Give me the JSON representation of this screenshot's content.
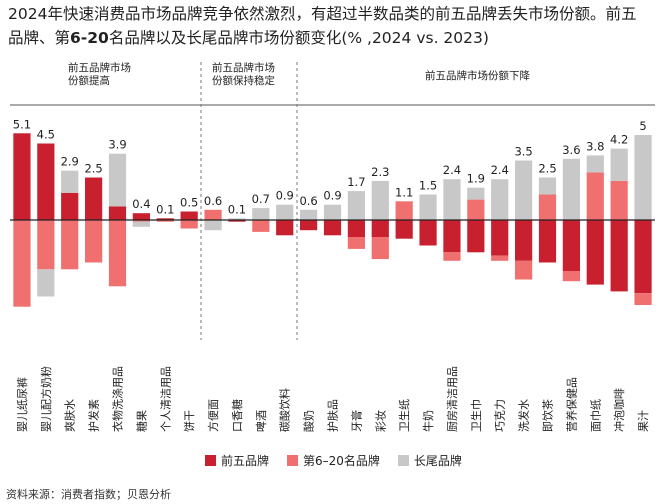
{
  "chart_data": {
    "type": "bar",
    "stacked": true,
    "title_parts": [
      "2024年快速消费品市场品牌竞争依然激烈，有超过半数品类的前五品牌丢失市场份额。前五品牌、第",
      "6-20",
      "名品牌以及长尾品牌市场份额变化(% ,2024 vs. 2023)"
    ],
    "annotations": [
      "前五品牌市场份额提高",
      "前五品牌市场份额保持稳定",
      "前五品牌市场份额下降"
    ],
    "source": "资料来源：消费者指数；贝恩分析",
    "categories": [
      "婴儿纸尿裤",
      "婴儿配方奶粉",
      "爽肤水",
      "护发素",
      "衣物洗涤用品",
      "糖果",
      "个人清洁用品",
      "饼干",
      "方便面",
      "口香糖",
      "啤酒",
      "碳酸饮料",
      "酸奶",
      "护肤品",
      "牙膏",
      "彩妆",
      "卫生纸",
      "牛奶",
      "厨房清洁用品",
      "卫生巾",
      "巧克力",
      "洗发水",
      "即饮茶",
      "营养保健品",
      "面巾纸",
      "冲泡咖啡",
      "果汁"
    ],
    "totals": [
      5.1,
      4.5,
      2.9,
      2.5,
      3.9,
      0.4,
      0.1,
      0.5,
      0.6,
      0.1,
      0.7,
      0.9,
      0.6,
      0.9,
      1.7,
      2.3,
      1.1,
      1.5,
      2.4,
      1.9,
      2.4,
      3.5,
      2.5,
      3.6,
      3.8,
      4.2,
      5.0
    ],
    "series": [
      {
        "name": "前五品牌",
        "color": "#c8202f",
        "values": [
          5.1,
          4.5,
          1.6,
          2.5,
          0.8,
          0.4,
          0.1,
          0.5,
          0,
          -0.1,
          0,
          -0.9,
          -0.6,
          -0.9,
          -1.0,
          -1.0,
          -1.1,
          -1.5,
          -1.9,
          -1.9,
          -2.1,
          -2.4,
          -2.5,
          -3.0,
          -3.8,
          -4.2,
          -4.3
        ]
      },
      {
        "name": "第6–20名品牌",
        "color": "#f07070",
        "values": [
          -5.1,
          -2.9,
          -2.9,
          -2.5,
          -3.9,
          -0.1,
          -0.1,
          -0.5,
          0.6,
          0,
          -0.7,
          0,
          0,
          0,
          -0.7,
          -1.3,
          1.1,
          0,
          -0.5,
          1.2,
          -0.3,
          -1.1,
          1.5,
          -0.6,
          2.8,
          2.3,
          -0.7
        ]
      },
      {
        "name": "长尾品牌",
        "color": "#c8c8c8",
        "values": [
          0,
          -1.6,
          1.3,
          0,
          3.1,
          -0.3,
          0,
          0,
          -0.6,
          0.1,
          0.7,
          0.9,
          0.6,
          0.9,
          1.7,
          2.3,
          0,
          1.5,
          2.4,
          0.7,
          2.4,
          3.5,
          1.0,
          3.6,
          1.0,
          1.9,
          5.0
        ]
      }
    ],
    "ylim": [
      -6,
      6
    ]
  }
}
